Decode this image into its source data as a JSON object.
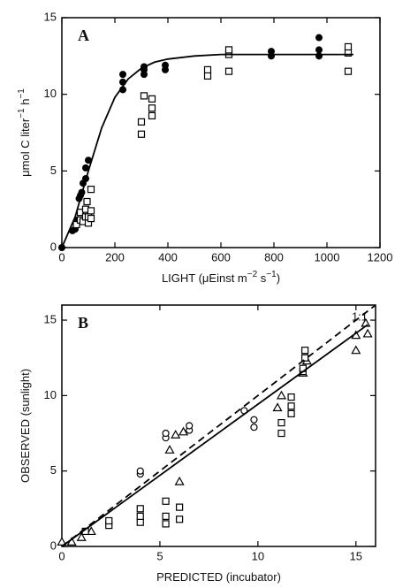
{
  "chart_data": [
    {
      "type": "scatter",
      "panel_label": "A",
      "x_label": [
        "LIGHT (μEinst m",
        "−2",
        " s",
        "−1",
        ")"
      ],
      "y_label": [
        "μmol C liter",
        "−1",
        " h",
        "−1"
      ],
      "xlim": [
        0,
        1200
      ],
      "xticks": [
        0,
        200,
        400,
        600,
        800,
        1000,
        1200
      ],
      "ylim": [
        0,
        15
      ],
      "yticks": [
        0,
        5,
        10,
        15
      ],
      "series": [
        {
          "marker": "circle-filled",
          "color": "#000",
          "x": [
            0,
            40,
            50,
            60,
            65,
            70,
            75,
            80,
            90,
            90,
            100,
            230,
            230,
            230,
            310,
            310,
            310,
            390,
            390,
            790,
            790,
            970,
            970,
            970
          ],
          "values": [
            0,
            1.1,
            1.2,
            1.8,
            3.2,
            3.4,
            3.6,
            4.2,
            4.5,
            5.2,
            5.7,
            10.3,
            10.8,
            11.3,
            11.3,
            11.6,
            11.8,
            11.6,
            11.9,
            12.5,
            12.8,
            12.5,
            12.9,
            13.7
          ]
        },
        {
          "marker": "square",
          "color": "#000",
          "x": [
            55,
            70,
            70,
            80,
            90,
            90,
            95,
            100,
            100,
            110,
            110,
            110,
            300,
            300,
            310,
            340,
            340,
            340,
            550,
            550,
            630,
            630,
            630,
            1080,
            1080,
            1080
          ],
          "values": [
            1.5,
            1.8,
            2.3,
            1.7,
            2.0,
            2.5,
            3.0,
            1.6,
            2.0,
            3.8,
            2.4,
            1.9,
            7.4,
            8.2,
            9.9,
            8.6,
            9.1,
            9.7,
            11.2,
            11.6,
            11.5,
            12.6,
            12.9,
            11.5,
            12.7,
            13.1
          ]
        },
        {
          "marker": "line",
          "style": "solid",
          "color": "#000",
          "x": [
            0,
            50,
            100,
            150,
            200,
            250,
            300,
            350,
            400,
            500,
            600,
            800,
            1000,
            1100
          ],
          "values": [
            0,
            2.0,
            5.0,
            7.8,
            9.8,
            11.0,
            11.7,
            12.1,
            12.3,
            12.5,
            12.6,
            12.6,
            12.6,
            12.6
          ]
        }
      ]
    },
    {
      "type": "scatter",
      "panel_label": "B",
      "x_label": [
        "PREDICTED (incubator)"
      ],
      "y_label": [
        "OBSERVED (sunlight)"
      ],
      "annotation": "1:1",
      "xlim": [
        0,
        16
      ],
      "xticks": [
        0,
        5,
        10,
        15
      ],
      "ylim": [
        0,
        16
      ],
      "yticks": [
        0,
        5,
        10,
        15
      ],
      "series": [
        {
          "marker": "triangle",
          "color": "#000",
          "x": [
            0,
            0.5,
            1,
            1.5,
            5.5,
            5.8,
            6,
            6.2,
            11,
            11.2,
            12.3,
            12.5,
            15,
            15,
            15.5,
            15.6
          ],
          "values": [
            0.3,
            0.3,
            0.6,
            1.0,
            6.4,
            7.4,
            4.3,
            7.6,
            9.2,
            10,
            11.5,
            12.3,
            13,
            14,
            14.8,
            14.1
          ]
        },
        {
          "marker": "square",
          "color": "#000",
          "x": [
            1.2,
            2.4,
            2.4,
            4,
            4,
            4,
            5.3,
            5.3,
            5.3,
            6,
            6,
            11.2,
            11.2,
            11.7,
            11.7,
            11.7,
            12.3,
            12.3,
            12.4,
            12.4
          ],
          "values": [
            1.0,
            1.4,
            1.7,
            1.6,
            2.0,
            2.5,
            1.5,
            2.0,
            3.0,
            1.8,
            2.6,
            7.5,
            8.2,
            8.8,
            9.3,
            9.9,
            11.6,
            11.8,
            12.5,
            13
          ]
        },
        {
          "marker": "circle",
          "color": "#000",
          "x": [
            4,
            4,
            5.3,
            5.3,
            6.5,
            6.5,
            9.3,
            9.8,
            9.8
          ],
          "values": [
            4.8,
            5.0,
            7.2,
            7.5,
            7.7,
            8.0,
            9.0,
            7.9,
            8.4
          ]
        },
        {
          "marker": "line",
          "style": "solid",
          "color": "#000",
          "x": [
            0,
            15.6
          ],
          "values": [
            0,
            14.7
          ]
        },
        {
          "marker": "line",
          "style": "dashed",
          "color": "#000",
          "x": [
            0,
            16
          ],
          "values": [
            0,
            16
          ]
        }
      ]
    }
  ]
}
